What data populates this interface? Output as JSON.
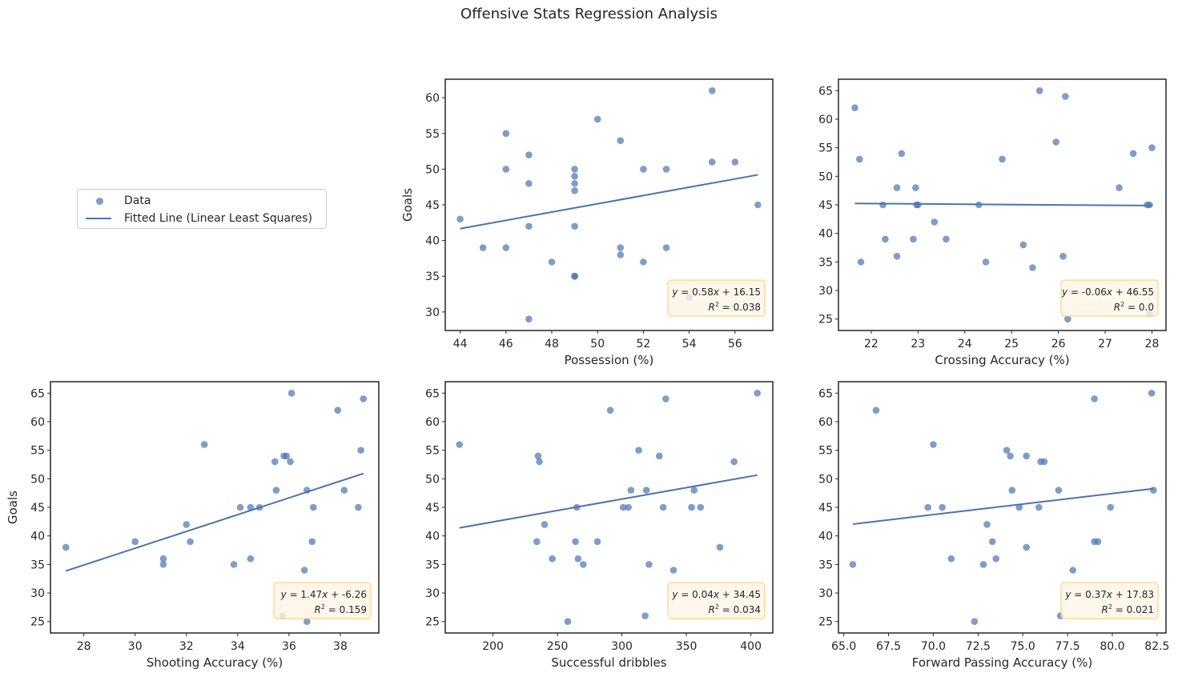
{
  "figure": {
    "suptitle": "Offensive Stats Regression Analysis",
    "point_color": "#4c72b0",
    "line_color": "#4c72b0",
    "annotation_fill": "#fff5e6",
    "annotation_edge": "#ffc966"
  },
  "legend": {
    "entries": [
      {
        "label": "Data",
        "kind": "scatter"
      },
      {
        "label": "Fitted Line (Linear Least Squares)",
        "kind": "line"
      }
    ]
  },
  "chart_data": [
    {
      "type": "scatter",
      "id": "possession",
      "xlabel": "Possession (%)",
      "ylabel": "Goals",
      "xlim": [
        43.35,
        57.65
      ],
      "ylim": [
        27.4,
        62.6
      ],
      "xticks": [
        44,
        46,
        48,
        50,
        52,
        54,
        56
      ],
      "yticks": [
        30,
        35,
        40,
        45,
        50,
        55,
        60
      ],
      "x": [
        44,
        45,
        46,
        46,
        46,
        47,
        47,
        47,
        47,
        48,
        49,
        49,
        49,
        49,
        49,
        49,
        49,
        50,
        51,
        51,
        51,
        52,
        52,
        53,
        53,
        54,
        55,
        55,
        56,
        57
      ],
      "y": [
        43,
        39,
        55,
        50,
        39,
        52,
        48,
        42,
        29,
        37,
        50,
        49,
        48,
        47,
        42,
        35,
        35,
        57,
        54,
        39,
        38,
        50,
        37,
        50,
        39,
        32,
        61,
        51,
        51,
        45
      ],
      "fit": {
        "slope": 0.58,
        "intercept": 16.15,
        "x_range": [
          44,
          57
        ]
      },
      "annotation": {
        "equation": "y = 0.58x + 16.15",
        "r2": "R2 = 0.038",
        "r2_value": "0.038"
      }
    },
    {
      "type": "scatter",
      "id": "crossing",
      "xlabel": "Crossing Accuracy (%)",
      "ylabel": "",
      "xlim": [
        21.3,
        28.3
      ],
      "ylim": [
        23.0,
        67.0
      ],
      "xticks": [
        22,
        23,
        24,
        25,
        26,
        27,
        28
      ],
      "yticks": [
        25,
        30,
        35,
        40,
        45,
        50,
        55,
        60,
        65
      ],
      "x": [
        21.65,
        21.75,
        21.78,
        22.25,
        22.3,
        22.55,
        22.55,
        22.65,
        22.9,
        22.95,
        22.97,
        23.0,
        23.35,
        23.6,
        24.3,
        24.45,
        24.8,
        25.25,
        25.45,
        25.6,
        25.95,
        26.1,
        26.15,
        26.2,
        27.3,
        27.6,
        27.9,
        27.95,
        27.95,
        28.0
      ],
      "y": [
        62,
        53,
        35,
        45,
        39,
        48,
        36,
        54,
        39,
        48,
        45,
        45,
        42,
        39,
        45,
        35,
        53,
        38,
        34,
        65,
        56,
        36,
        64,
        25,
        48,
        54,
        45,
        26,
        45,
        55
      ],
      "fit": {
        "slope": -0.06,
        "intercept": 46.55,
        "x_range": [
          21.65,
          28.0
        ]
      },
      "annotation": {
        "equation": "y = -0.06x + 46.55",
        "r2": "R2 = 0.0",
        "r2_value": "0.0"
      }
    },
    {
      "type": "scatter",
      "id": "shooting",
      "xlabel": "Shooting Accuracy (%)",
      "ylabel": "Goals",
      "xlim": [
        26.7,
        39.5
      ],
      "ylim": [
        23.0,
        67.0
      ],
      "xticks": [
        28,
        30,
        32,
        34,
        36,
        38
      ],
      "yticks": [
        25,
        30,
        35,
        40,
        45,
        50,
        55,
        60,
        65
      ],
      "x": [
        27.3,
        30.0,
        31.1,
        31.1,
        32.0,
        32.15,
        32.7,
        33.85,
        34.1,
        34.5,
        34.5,
        34.85,
        35.45,
        35.5,
        35.75,
        35.8,
        35.9,
        36.05,
        36.1,
        36.6,
        36.7,
        36.7,
        36.9,
        36.95,
        37.9,
        38.15,
        38.7,
        38.8,
        38.9
      ],
      "y": [
        38,
        39,
        36,
        35,
        42,
        39,
        56,
        35,
        45,
        45,
        36,
        45,
        53,
        48,
        26,
        54,
        54,
        53,
        65,
        34,
        25,
        48,
        39,
        45,
        62,
        48,
        45,
        55,
        64
      ],
      "fit": {
        "slope": 1.47,
        "intercept": -6.26,
        "x_range": [
          27.3,
          38.9
        ]
      },
      "annotation": {
        "equation": "y = 1.47x + -6.26",
        "r2": "R2 = 0.159",
        "r2_value": "0.159"
      }
    },
    {
      "type": "scatter",
      "id": "dribbles",
      "xlabel": "Successful dribbles",
      "ylabel": "",
      "xlim": [
        163,
        417
      ],
      "ylim": [
        23.0,
        67.0
      ],
      "xticks": [
        200,
        250,
        300,
        350,
        400
      ],
      "yticks": [
        25,
        30,
        35,
        40,
        45,
        50,
        55,
        60,
        65
      ],
      "x": [
        174,
        234,
        235,
        236,
        240,
        246,
        258,
        264,
        265,
        266,
        270,
        281,
        291,
        301,
        305,
        307,
        313,
        318,
        319,
        321,
        329,
        332,
        334,
        340,
        354,
        356,
        361,
        376,
        387,
        405
      ],
      "y": [
        56,
        39,
        54,
        53,
        42,
        36,
        25,
        39,
        45,
        36,
        35,
        39,
        62,
        45,
        45,
        48,
        55,
        26,
        48,
        35,
        54,
        45,
        64,
        34,
        45,
        48,
        45,
        38,
        53,
        65
      ],
      "fit": {
        "slope": 0.04,
        "intercept": 34.45,
        "x_range": [
          174,
          405
        ]
      },
      "annotation": {
        "equation": "y = 0.04x + 34.45",
        "r2": "R2 = 0.034",
        "r2_value": "0.034"
      }
    },
    {
      "type": "scatter",
      "id": "forward_passing",
      "xlabel": "Forward Passing Accuracy (%)",
      "ylabel": "",
      "xlim": [
        64.7,
        83.0
      ],
      "ylim": [
        23.0,
        67.0
      ],
      "xticks": [
        65.0,
        67.5,
        70.0,
        72.5,
        75.0,
        77.5,
        80.0,
        82.5
      ],
      "yticks": [
        25,
        30,
        35,
        40,
        45,
        50,
        55,
        60,
        65
      ],
      "x": [
        65.5,
        66.8,
        69.7,
        70.0,
        70.5,
        71.0,
        72.3,
        72.8,
        73.0,
        73.3,
        73.5,
        74.1,
        74.3,
        74.4,
        74.8,
        75.2,
        75.2,
        75.9,
        76.0,
        76.2,
        77.0,
        77.1,
        77.8,
        79.0,
        79.0,
        79.2,
        79.9,
        82.2,
        82.3
      ],
      "y": [
        35,
        62,
        45,
        56,
        45,
        36,
        25,
        35,
        42,
        39,
        36,
        55,
        54,
        48,
        45,
        54,
        38,
        45,
        53,
        53,
        48,
        26,
        34,
        64,
        39,
        39,
        45,
        65,
        48
      ],
      "fit": {
        "slope": 0.37,
        "intercept": 17.83,
        "x_range": [
          65.5,
          82.3
        ]
      },
      "annotation": {
        "equation": "y = 0.37x + 17.83",
        "r2": "R2 = 0.021",
        "r2_value": "0.021"
      }
    }
  ]
}
